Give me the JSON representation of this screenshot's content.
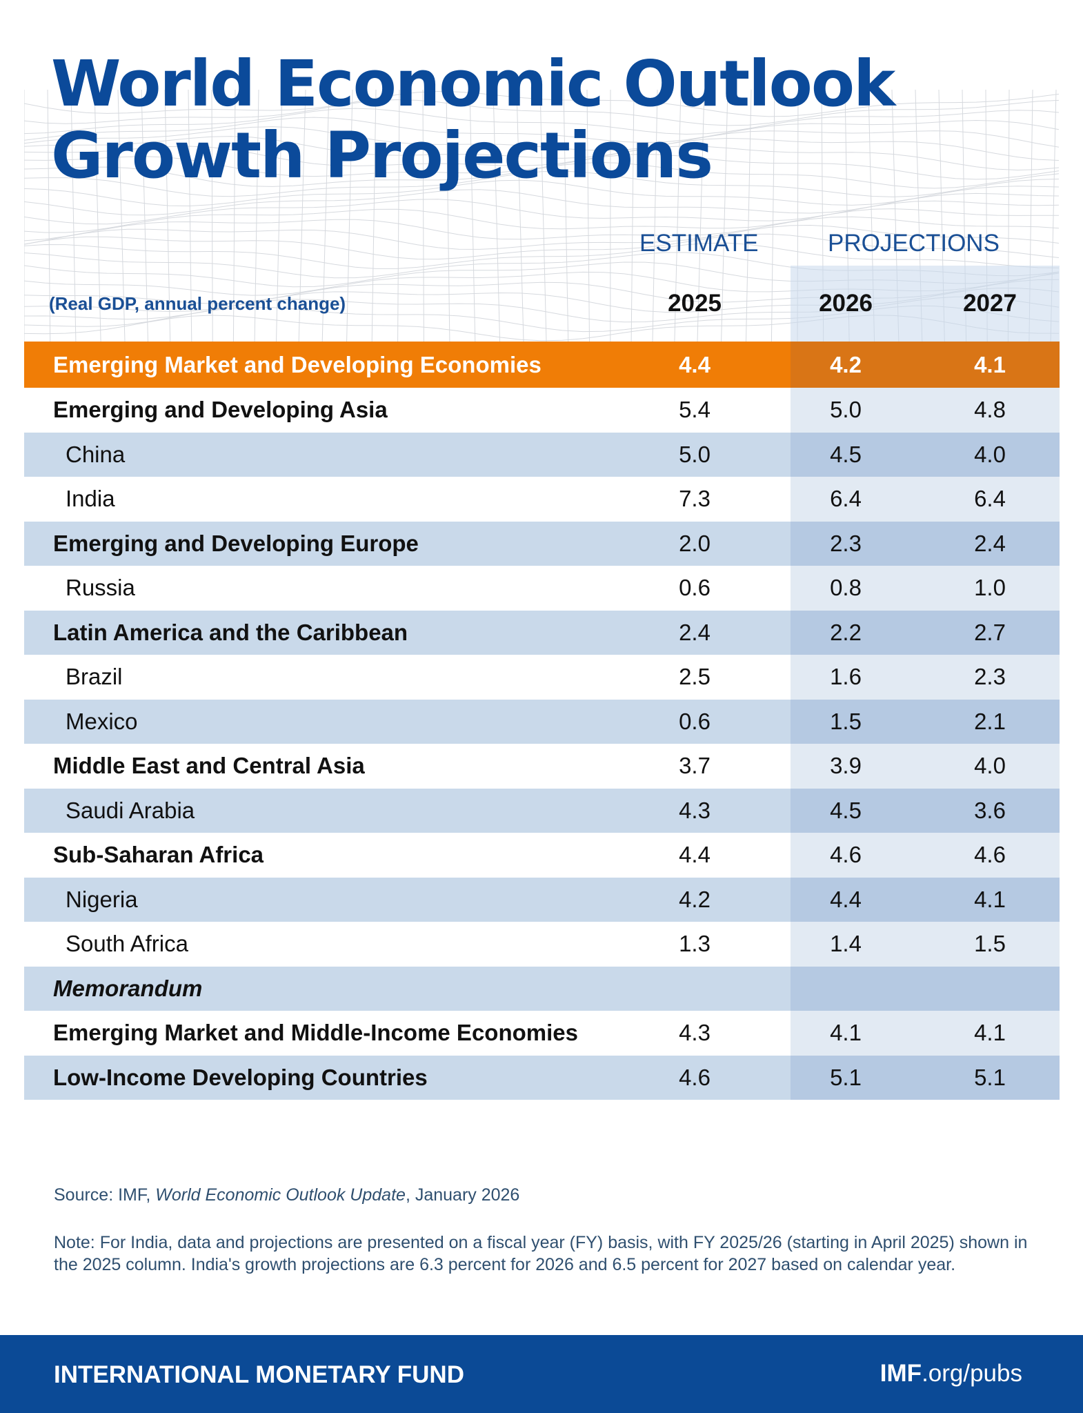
{
  "header": {
    "title_line1": "World Economic Outlook",
    "title_line2": "Growth Projections",
    "subtitle": "(Real GDP, annual percent change)",
    "estimate_label": "ESTIMATE",
    "projections_label": "PROJECTIONS",
    "years": [
      "2025",
      "2026",
      "2027"
    ]
  },
  "colors": {
    "title_blue": "#0b4a9a",
    "headline_orange": "#f07d06",
    "headline_orange_projection": "#d97516",
    "row_shaded": "#c9d9ea",
    "row_shaded_projection": "#b5c9e2",
    "row_white_projection": "#e2eaf3",
    "footer_blue": "#0b4a96"
  },
  "rows": [
    {
      "name": "Emerging Market and Developing Economies",
      "style": "headline",
      "values": [
        "4.4",
        "4.2",
        "4.1"
      ]
    },
    {
      "name": "Emerging and Developing Asia",
      "style": "white",
      "level": "region",
      "values": [
        "5.4",
        "5.0",
        "4.8"
      ]
    },
    {
      "name": "China",
      "style": "shaded",
      "level": "country",
      "values": [
        "5.0",
        "4.5",
        "4.0"
      ]
    },
    {
      "name": "India",
      "style": "white",
      "level": "country",
      "values": [
        "7.3",
        "6.4",
        "6.4"
      ]
    },
    {
      "name": "Emerging and Developing Europe",
      "style": "shaded",
      "level": "region",
      "values": [
        "2.0",
        "2.3",
        "2.4"
      ]
    },
    {
      "name": "Russia",
      "style": "white",
      "level": "country",
      "values": [
        "0.6",
        "0.8",
        "1.0"
      ]
    },
    {
      "name": "Latin America and the Caribbean",
      "style": "shaded",
      "level": "region",
      "values": [
        "2.4",
        "2.2",
        "2.7"
      ]
    },
    {
      "name": "Brazil",
      "style": "white",
      "level": "country",
      "values": [
        "2.5",
        "1.6",
        "2.3"
      ]
    },
    {
      "name": "Mexico",
      "style": "shaded",
      "level": "country",
      "values": [
        "0.6",
        "1.5",
        "2.1"
      ]
    },
    {
      "name": "Middle East and Central Asia",
      "style": "white",
      "level": "region",
      "values": [
        "3.7",
        "3.9",
        "4.0"
      ]
    },
    {
      "name": "Saudi Arabia",
      "style": "shaded",
      "level": "country",
      "values": [
        "4.3",
        "4.5",
        "3.6"
      ]
    },
    {
      "name": "Sub-Saharan Africa",
      "style": "white",
      "level": "region",
      "values": [
        "4.4",
        "4.6",
        "4.6"
      ]
    },
    {
      "name": "Nigeria",
      "style": "shaded",
      "level": "country",
      "values": [
        "4.2",
        "4.4",
        "4.1"
      ]
    },
    {
      "name": "South Africa",
      "style": "white",
      "level": "country",
      "values": [
        "1.3",
        "1.4",
        "1.5"
      ]
    },
    {
      "name": "Memorandum",
      "style": "shaded",
      "level": "memo",
      "values": [
        "",
        "",
        ""
      ]
    },
    {
      "name": "Emerging Market and Middle-Income Economies",
      "style": "white",
      "level": "region",
      "values": [
        "4.3",
        "4.1",
        "4.1"
      ]
    },
    {
      "name": "Low-Income Developing Countries",
      "style": "shaded",
      "level": "region",
      "values": [
        "4.6",
        "5.1",
        "5.1"
      ]
    }
  ],
  "source": {
    "prefix": "Source: IMF, ",
    "publication": "World Economic Outlook Update",
    "suffix": ", January 2026"
  },
  "note": "Note: For India, data and projections are presented on a fiscal year (FY) basis, with FY 2025/26 (starting in April 2025) shown in the 2025 column. India's growth projections are 6.3 percent for 2026 and 6.5 percent for 2027 based on calendar year.",
  "footer": {
    "org": "INTERNATIONAL MONETARY FUND",
    "url_bold": "IMF",
    "url_rest": ".org/pubs"
  }
}
